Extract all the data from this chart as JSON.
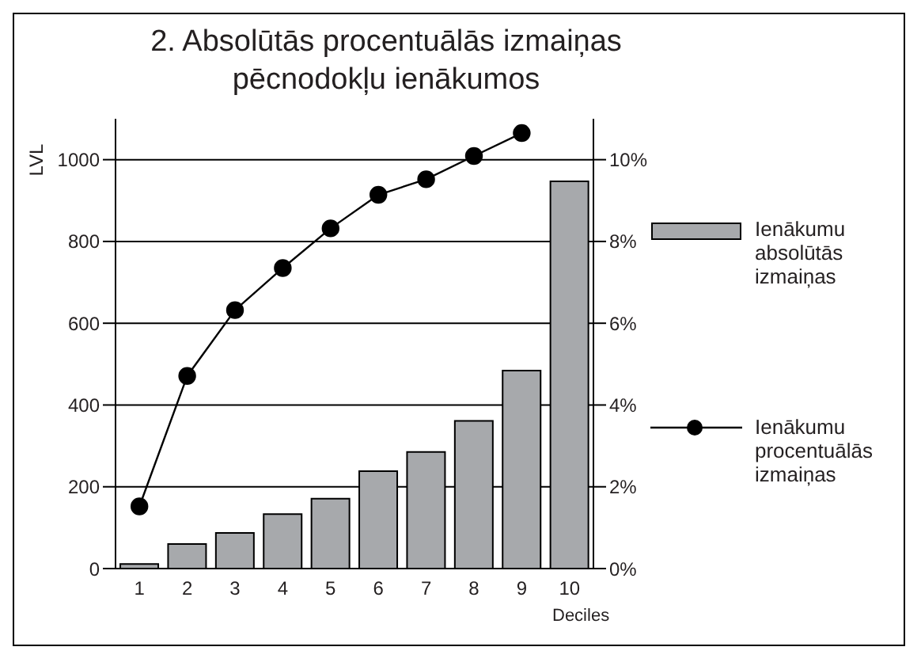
{
  "chart_data": {
    "type": "bar",
    "title": "2. Absolūtās procentuālās izmaiņas pēcnodokļu ienākumos",
    "xlabel": "Deciles",
    "ylabel": "LVL",
    "categories": [
      "1",
      "2",
      "3",
      "4",
      "5",
      "6",
      "7",
      "8",
      "9",
      "10"
    ],
    "series": [
      {
        "name": "Ienākumu absolūtās izmaiņas",
        "color": "#a7a9ac",
        "values": [
          11,
          60,
          87,
          133,
          171,
          238,
          285,
          361,
          484,
          947
        ]
      },
      {
        "name": "Ienākumu procentuālās izmaiņas",
        "type": "line",
        "axis": "y2",
        "color": "#000000",
        "values": [
          1.52,
          4.71,
          6.32,
          7.35,
          8.32,
          9.14,
          9.52,
          10.09,
          10.65,
          null
        ]
      }
    ],
    "ylim": [
      0,
      1100
    ],
    "yticks": [
      0,
      200,
      400,
      600,
      800,
      1000
    ],
    "y2lim": [
      0,
      11
    ],
    "y2ticks": [
      {
        "value": 0,
        "label": "0%"
      },
      {
        "value": 2,
        "label": "2%"
      },
      {
        "value": 4,
        "label": "4%"
      },
      {
        "value": 6,
        "label": "6%"
      },
      {
        "value": 8,
        "label": "8%"
      },
      {
        "value": 10,
        "label": "10%"
      }
    ],
    "grid": "y",
    "legend": "right",
    "marker": "circle"
  }
}
